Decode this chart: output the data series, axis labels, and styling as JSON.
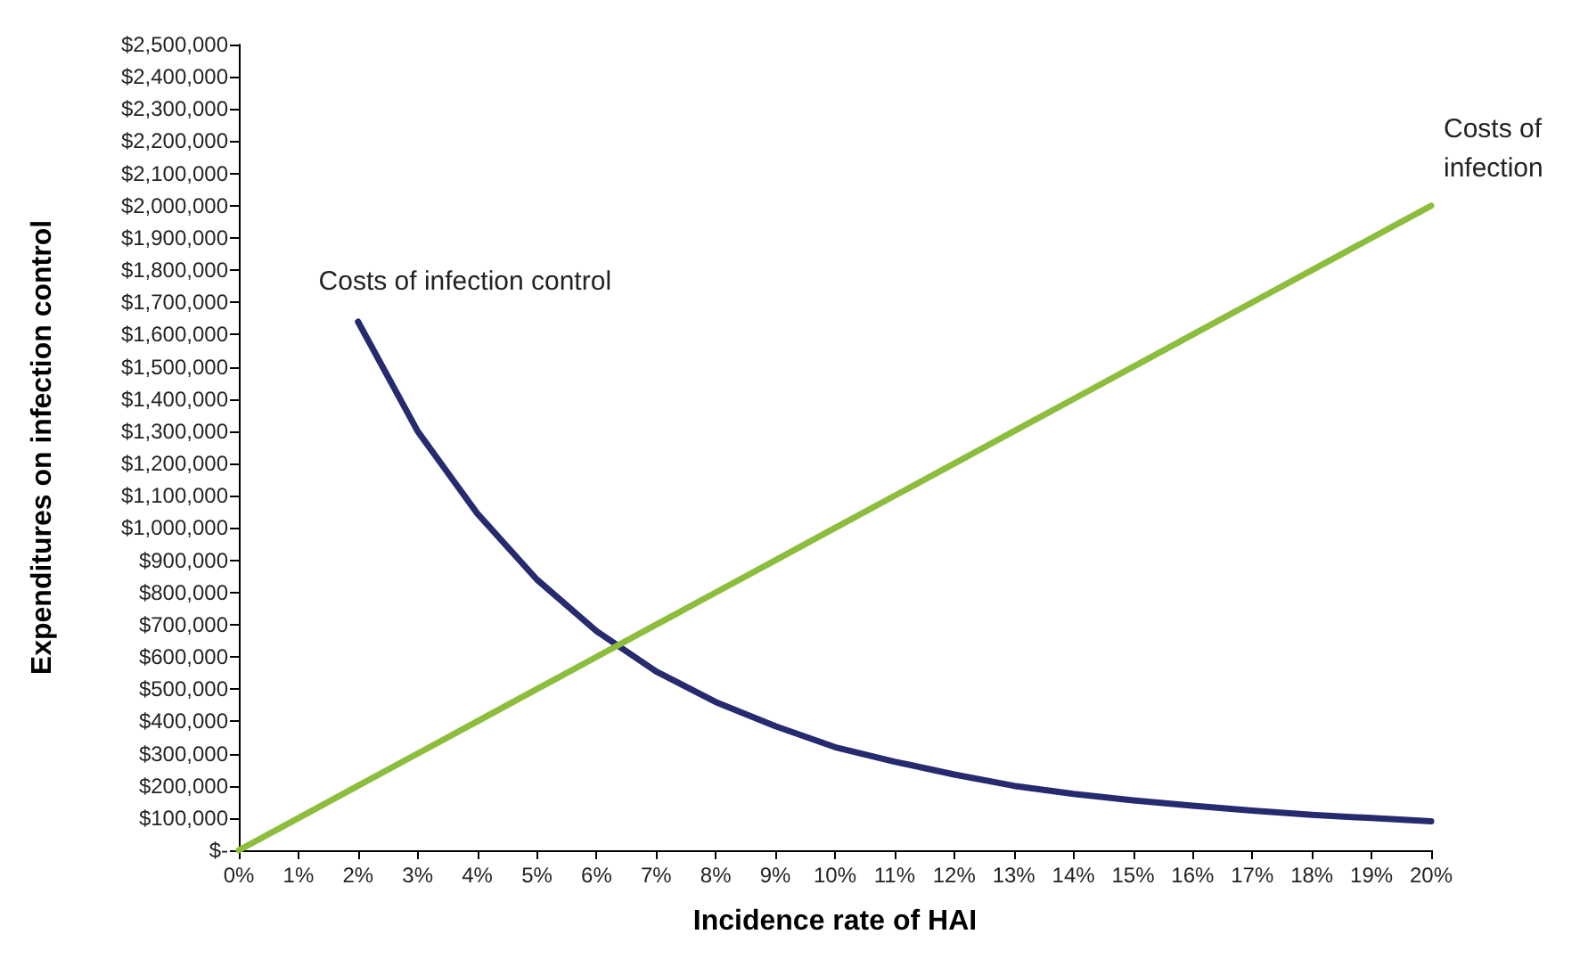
{
  "chart_data": {
    "type": "line",
    "xlabel": "Incidence rate of HAI",
    "ylabel": "Expenditures on infection control",
    "categories": [
      "0%",
      "1%",
      "2%",
      "3%",
      "4%",
      "5%",
      "6%",
      "7%",
      "8%",
      "9%",
      "10%",
      "11%",
      "12%",
      "13%",
      "14%",
      "15%",
      "16%",
      "17%",
      "18%",
      "19%",
      "20%"
    ],
    "series": [
      {
        "name": "Costs of infection control",
        "color": "#262a6e",
        "values": [
          null,
          null,
          1640000,
          1300000,
          1045000,
          840000,
          680000,
          555000,
          460000,
          385000,
          320000,
          275000,
          235000,
          200000,
          175000,
          155000,
          138000,
          123000,
          110000,
          100000,
          90000
        ]
      },
      {
        "name": "Costs of infection",
        "color": "#8dbd3d",
        "values": [
          0,
          100000,
          200000,
          300000,
          400000,
          500000,
          600000,
          700000,
          800000,
          900000,
          1000000,
          1100000,
          1200000,
          1300000,
          1400000,
          1500000,
          1600000,
          1700000,
          1800000,
          1900000,
          2000000
        ]
      }
    ],
    "ylim": [
      0,
      2500000
    ],
    "yticks": [
      {
        "value": 0,
        "label": "$-"
      },
      {
        "value": 100000,
        "label": "$100,000"
      },
      {
        "value": 200000,
        "label": "$200,000"
      },
      {
        "value": 300000,
        "label": "$300,000"
      },
      {
        "value": 400000,
        "label": "$400,000"
      },
      {
        "value": 500000,
        "label": "$500,000"
      },
      {
        "value": 600000,
        "label": "$600,000"
      },
      {
        "value": 700000,
        "label": "$700,000"
      },
      {
        "value": 800000,
        "label": "$800,000"
      },
      {
        "value": 900000,
        "label": "$900,000"
      },
      {
        "value": 1000000,
        "label": "$1,000,000"
      },
      {
        "value": 1100000,
        "label": "$1,100,000"
      },
      {
        "value": 1200000,
        "label": "$1,200,000"
      },
      {
        "value": 1300000,
        "label": "$1,300,000"
      },
      {
        "value": 1400000,
        "label": "$1,400,000"
      },
      {
        "value": 1500000,
        "label": "$1,500,000"
      },
      {
        "value": 1600000,
        "label": "$1,600,000"
      },
      {
        "value": 1700000,
        "label": "$1,700,000"
      },
      {
        "value": 1800000,
        "label": "$1,800,000"
      },
      {
        "value": 1900000,
        "label": "$1,900,000"
      },
      {
        "value": 2000000,
        "label": "$2,000,000"
      },
      {
        "value": 2100000,
        "label": "$2,100,000"
      },
      {
        "value": 2200000,
        "label": "$2,200,000"
      },
      {
        "value": 2300000,
        "label": "$2,300,000"
      },
      {
        "value": 2400000,
        "label": "$2,400,000"
      },
      {
        "value": 2500000,
        "label": "$2,500,000"
      }
    ],
    "grid": false,
    "legend": false,
    "marker": "none",
    "line_style": "solid"
  }
}
